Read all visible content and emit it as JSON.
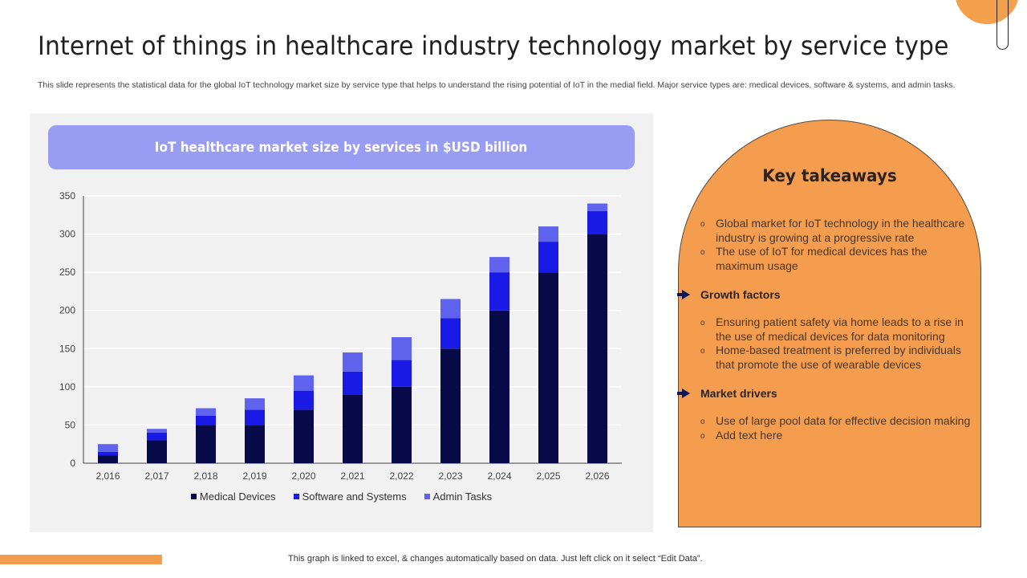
{
  "header": {
    "title": "Internet of things in healthcare industry technology market by service type",
    "subtitle": "This slide represents the statistical data for the global IoT technology market size by service type that helps to understand the rising potential of IoT in the medial field. Major service types are: medical devices, software & systems, and admin tasks."
  },
  "chart_panel": {
    "header_label": "IoT healthcare market size by services in $USD billion"
  },
  "chart_data": {
    "type": "bar",
    "stacked": true,
    "title": "IoT healthcare market size by services in $USD billion",
    "xlabel": "",
    "ylabel": "",
    "categories": [
      "2,016",
      "2,017",
      "2,018",
      "2,019",
      "2,020",
      "2,021",
      "2,022",
      "2,023",
      "2,024",
      "2,025",
      "2,026"
    ],
    "series": [
      {
        "name": "Medical Devices",
        "color": "#080a4a",
        "values": [
          10,
          30,
          50,
          50,
          70,
          90,
          100,
          150,
          200,
          250,
          300
        ]
      },
      {
        "name": "Software and Systems",
        "color": "#1a1ae6",
        "values": [
          5,
          10,
          12,
          20,
          25,
          30,
          35,
          40,
          50,
          40,
          30
        ]
      },
      {
        "name": "Admin Tasks",
        "color": "#5f63ee",
        "values": [
          10,
          5,
          10,
          15,
          20,
          25,
          30,
          25,
          20,
          20,
          10
        ]
      }
    ],
    "ylim": [
      0,
      350
    ],
    "yticks": [
      0,
      50,
      100,
      150,
      200,
      250,
      300,
      350
    ],
    "grid": true,
    "legend": "bottom"
  },
  "takeaways": {
    "title": "Key takeaways",
    "intro_bullets": [
      "Global market for IoT technology in the healthcare industry is growing at a progressive rate",
      "The use of IoT for medical devices has the maximum usage"
    ],
    "sections": [
      {
        "heading": "Growth factors",
        "bullets": [
          "Ensuring patient safety via home leads to a rise in the use of medical devices for data monitoring",
          "Home-based treatment is preferred by individuals that promote the use of wearable devices"
        ]
      },
      {
        "heading": "Market drivers",
        "bullets": [
          "Use of large pool data for effective decision making",
          "Add text here"
        ]
      }
    ],
    "bullet_glyph": "o",
    "arrow_color": "#0d1557"
  },
  "footer": {
    "note": "This graph is linked to excel, & changes automatically based on data. Just left click on it select “Edit Data”."
  },
  "colors": {
    "accent_orange": "#f59d4f",
    "chart_header": "#989cf2",
    "panel_bg": "#f1f1f2"
  }
}
